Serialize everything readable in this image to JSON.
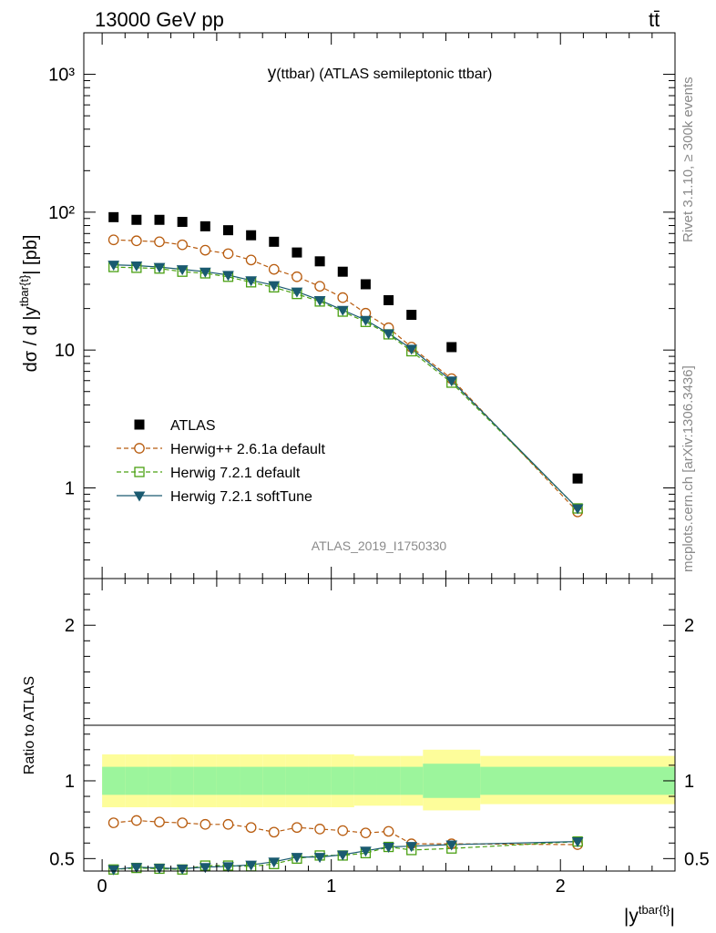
{
  "header": {
    "energy_label": "13000 GeV pp",
    "process_label": "tt̄"
  },
  "side_labels": {
    "rivet": "Rivet 3.1.10, ≥ 300k events",
    "mcplots": "mcplots.cern.ch [arXiv:1306.3436]"
  },
  "colors": {
    "atlas": "#000000",
    "herwigpp": "#b85c0f",
    "herwig721": "#4aa012",
    "softtune": "#1a5a70",
    "band_stat": "#9cf59c",
    "band_total": "#fdfd9a"
  },
  "chart_data": [
    {
      "type": "scatter",
      "title": "y(ttbar) (ATLAS semileptonic ttbar)",
      "title_prefix": "y",
      "title_suffix": "(ttbar) (ATLAS semileptonic ttbar)",
      "ylabel": "dσ / d |y^{tbar{t}}| [pb]",
      "ylabel_main": "dσ / d |y",
      "ylabel_sup": "tbar{t}",
      "ylabel_end": "| [pb]",
      "yscale": "log",
      "ylim": [
        0.22,
        2000
      ],
      "xlim": [
        -0.08,
        2.5
      ],
      "y_tick_labels": [
        "1",
        "10",
        "10²",
        "10³"
      ],
      "watermark": "ATLAS_2019_I1750330",
      "legend_position": "middle-left",
      "x": [
        0.05,
        0.15,
        0.25,
        0.35,
        0.45,
        0.55,
        0.65,
        0.75,
        0.85,
        0.95,
        1.05,
        1.15,
        1.25,
        1.35,
        1.525,
        2.075
      ],
      "series": [
        {
          "name": "ATLAS",
          "style": "data",
          "values": [
            92,
            88,
            88,
            85,
            79,
            74,
            68,
            61,
            51,
            44,
            37,
            30,
            23,
            18,
            10.5,
            1.17
          ]
        },
        {
          "name": "Herwig++ 2.6.1a default",
          "style": "herwigpp",
          "values": [
            63,
            62,
            61,
            58,
            53,
            50,
            45,
            38.5,
            34,
            29,
            24,
            18.5,
            14.5,
            10.5,
            6.2,
            0.67
          ]
        },
        {
          "name": "Herwig 7.2.1 default",
          "style": "herwig721",
          "values": [
            40,
            39.5,
            39,
            37,
            36,
            34,
            31,
            28.5,
            25.5,
            22.5,
            19,
            16,
            13,
            9.8,
            5.8,
            0.71
          ]
        },
        {
          "name": "Herwig 7.2.1 softTune",
          "style": "softtune",
          "values": [
            41.5,
            41,
            40,
            38.5,
            37,
            35,
            32,
            29.5,
            26.5,
            23,
            19.5,
            16.5,
            13.2,
            10.2,
            6.0,
            0.71
          ]
        }
      ]
    },
    {
      "type": "scatter",
      "ylabel": "Ratio to ATLAS",
      "xlabel": "|y^{tbar{t}}|",
      "xlabel_main": "|y",
      "xlabel_sup": "tbar{t}",
      "xlabel_end": "|",
      "xlim": [
        -0.08,
        2.5
      ],
      "ylim": [
        0.42,
        2.3
      ],
      "y_tick_labels": [
        "0.5",
        "1",
        "2"
      ],
      "x_tick_labels": [
        "0",
        "1",
        "2"
      ],
      "bin_edges": [
        0.0,
        0.1,
        0.2,
        0.3,
        0.4,
        0.5,
        0.6,
        0.7,
        0.8,
        0.9,
        1.0,
        1.1,
        1.2,
        1.3,
        1.4,
        1.65,
        2.5
      ],
      "band_stat": [
        [
          0.91,
          1.09
        ],
        [
          0.91,
          1.09
        ],
        [
          0.91,
          1.09
        ],
        [
          0.91,
          1.09
        ],
        [
          0.91,
          1.09
        ],
        [
          0.91,
          1.09
        ],
        [
          0.91,
          1.09
        ],
        [
          0.91,
          1.09
        ],
        [
          0.91,
          1.09
        ],
        [
          0.91,
          1.09
        ],
        [
          0.91,
          1.09
        ],
        [
          0.91,
          1.09
        ],
        [
          0.91,
          1.09
        ],
        [
          0.91,
          1.09
        ],
        [
          0.89,
          1.11
        ],
        [
          0.91,
          1.09
        ]
      ],
      "band_total": [
        [
          0.83,
          1.17
        ],
        [
          0.83,
          1.17
        ],
        [
          0.83,
          1.17
        ],
        [
          0.83,
          1.17
        ],
        [
          0.83,
          1.17
        ],
        [
          0.83,
          1.17
        ],
        [
          0.83,
          1.17
        ],
        [
          0.83,
          1.17
        ],
        [
          0.83,
          1.17
        ],
        [
          0.83,
          1.17
        ],
        [
          0.83,
          1.17
        ],
        [
          0.84,
          1.16
        ],
        [
          0.84,
          1.16
        ],
        [
          0.84,
          1.16
        ],
        [
          0.81,
          1.2
        ],
        [
          0.85,
          1.16
        ]
      ],
      "x": [
        0.05,
        0.15,
        0.25,
        0.35,
        0.45,
        0.55,
        0.65,
        0.75,
        0.85,
        0.95,
        1.05,
        1.15,
        1.25,
        1.35,
        1.525,
        2.075
      ],
      "series": [
        {
          "name": "Herwig++ 2.6.1a default",
          "style": "herwigpp",
          "values": [
            0.73,
            0.745,
            0.735,
            0.73,
            0.72,
            0.72,
            0.7,
            0.67,
            0.7,
            0.69,
            0.68,
            0.665,
            0.675,
            0.595,
            0.595,
            0.59
          ]
        },
        {
          "name": "Herwig 7.2.1 default",
          "style": "herwig721",
          "values": [
            0.43,
            0.44,
            0.435,
            0.43,
            0.455,
            0.455,
            0.45,
            0.465,
            0.5,
            0.52,
            0.52,
            0.535,
            0.575,
            0.555,
            0.565,
            0.61
          ]
        },
        {
          "name": "Herwig 7.2.1 softTune",
          "style": "softtune",
          "values": [
            0.43,
            0.445,
            0.44,
            0.435,
            0.445,
            0.45,
            0.46,
            0.48,
            0.51,
            0.51,
            0.525,
            0.55,
            0.575,
            0.58,
            0.59,
            0.61
          ]
        }
      ]
    }
  ]
}
